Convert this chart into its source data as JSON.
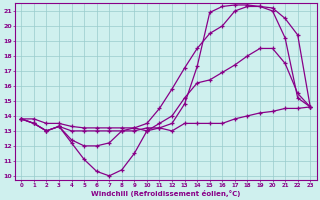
{
  "xlabel": "Windchill (Refroidissement éolien,°C)",
  "bg_color": "#cff0ee",
  "line_color": "#880088",
  "grid_color": "#99cccc",
  "xlim": [
    -0.5,
    23.5
  ],
  "ylim": [
    9.7,
    21.5
  ],
  "yticks": [
    10,
    11,
    12,
    13,
    14,
    15,
    16,
    17,
    18,
    19,
    20,
    21
  ],
  "xticks": [
    0,
    1,
    2,
    3,
    4,
    5,
    6,
    7,
    8,
    9,
    10,
    11,
    12,
    13,
    14,
    15,
    16,
    17,
    18,
    19,
    20,
    21,
    22,
    23
  ],
  "series": [
    [
      13.8,
      13.5,
      13.0,
      13.3,
      12.2,
      11.1,
      10.3,
      10.0,
      10.4,
      11.5,
      13.0,
      13.2,
      13.0,
      13.5,
      13.5,
      13.5,
      13.5,
      13.8,
      14.0,
      14.2,
      14.3,
      14.5,
      14.5,
      14.6
    ],
    [
      13.8,
      13.5,
      13.0,
      13.3,
      12.4,
      12.0,
      12.0,
      12.2,
      13.0,
      13.2,
      13.0,
      13.5,
      14.0,
      15.2,
      16.2,
      16.4,
      16.9,
      17.4,
      18.0,
      18.5,
      18.5,
      17.5,
      15.5,
      14.6
    ],
    [
      13.8,
      13.8,
      13.5,
      13.5,
      13.3,
      13.2,
      13.2,
      13.2,
      13.2,
      13.2,
      13.5,
      14.5,
      15.8,
      17.2,
      18.5,
      19.5,
      20.0,
      21.0,
      21.3,
      21.3,
      21.2,
      20.5,
      19.4,
      14.6
    ],
    [
      13.8,
      13.5,
      13.0,
      13.3,
      13.0,
      13.0,
      13.0,
      13.0,
      13.0,
      13.0,
      13.2,
      13.2,
      13.5,
      14.8,
      17.3,
      20.9,
      21.3,
      21.4,
      21.4,
      21.3,
      21.0,
      19.2,
      15.2,
      14.6
    ]
  ]
}
